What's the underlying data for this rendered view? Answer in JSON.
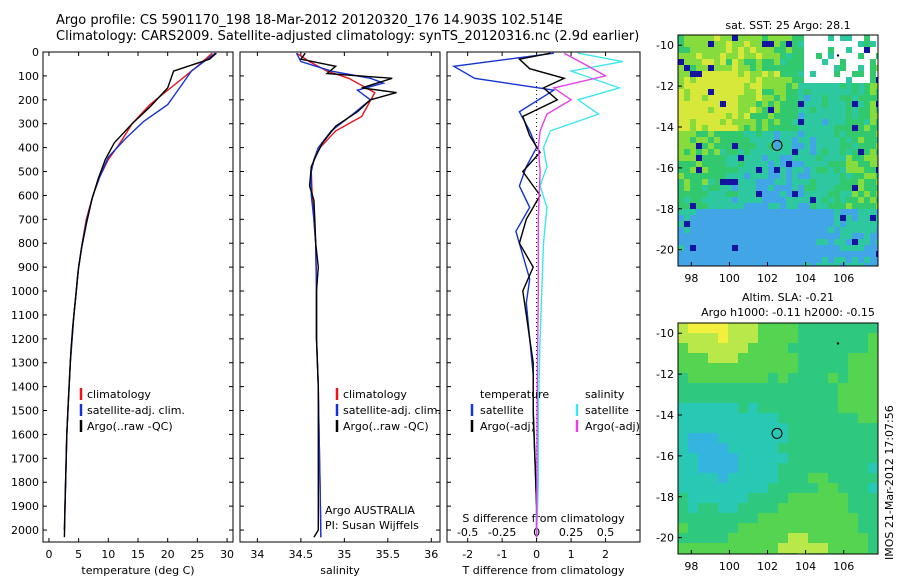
{
  "header": {
    "line1": "Argo profile: CS 5901170_198 18-Mar-2012 20120320_176 14.903S 102.514E",
    "line2": "Climatology: CARS2009. Satellite-adjusted climatology: synTS_20120316.nc (2.9d earlier)"
  },
  "credit": "IMOS 21-Mar-2012 17:07:56",
  "colors": {
    "climatology": "#e8141e",
    "satellite": "#1434d0",
    "argo": "#000000",
    "sat_salinity": "#3ee6ee",
    "argo_salinity": "#e640e6"
  },
  "chart_data": [
    {
      "type": "line",
      "id": "temperature",
      "xlabel": "temperature (deg C)",
      "ylim": [
        2050,
        0
      ],
      "xlim": [
        -1,
        31
      ],
      "xticks": [
        0,
        5,
        10,
        15,
        20,
        25,
        30
      ],
      "yticks": [
        0,
        100,
        200,
        300,
        400,
        500,
        600,
        700,
        800,
        900,
        1000,
        1100,
        1200,
        1300,
        1400,
        1500,
        1600,
        1700,
        1800,
        1900,
        2000
      ],
      "legend": [
        "climatology",
        "satellite-adj. clim.",
        "Argo(..raw -QC)"
      ],
      "series": [
        {
          "name": "climatology",
          "color": "#e8141e",
          "points": [
            [
              27.5,
              5
            ],
            [
              25,
              60
            ],
            [
              21,
              140
            ],
            [
              17,
              220
            ],
            [
              14,
              300
            ],
            [
              12,
              380
            ],
            [
              10,
              450
            ],
            [
              8.6,
              520
            ],
            [
              7.4,
              600
            ],
            [
              6.3,
              700
            ],
            [
              5.6,
              800
            ],
            [
              5.0,
              900
            ],
            [
              4.6,
              1000
            ],
            [
              4.2,
              1100
            ],
            [
              3.9,
              1200
            ],
            [
              3.6,
              1300
            ],
            [
              3.4,
              1400
            ],
            [
              3.2,
              1500
            ],
            [
              3.0,
              1600
            ],
            [
              2.9,
              1700
            ],
            [
              2.8,
              1800
            ],
            [
              2.7,
              1900
            ],
            [
              2.6,
              2000
            ]
          ]
        },
        {
          "name": "satellite-adj. clim.",
          "color": "#1434d0",
          "points": [
            [
              28,
              5
            ],
            [
              24,
              80
            ],
            [
              22,
              150
            ],
            [
              20,
              220
            ],
            [
              16,
              290
            ],
            [
              13,
              360
            ],
            [
              10,
              440
            ],
            [
              8.6,
              520
            ],
            [
              7.4,
              600
            ],
            [
              6.4,
              700
            ],
            [
              5.6,
              800
            ],
            [
              5.0,
              900
            ],
            [
              4.6,
              1000
            ],
            [
              4.2,
              1100
            ],
            [
              3.9,
              1200
            ],
            [
              3.6,
              1300
            ],
            [
              3.4,
              1400
            ],
            [
              3.2,
              1500
            ],
            [
              3.0,
              1600
            ],
            [
              2.9,
              1700
            ],
            [
              2.8,
              1800
            ],
            [
              2.7,
              1900
            ],
            [
              2.6,
              2000
            ]
          ]
        },
        {
          "name": "Argo(..raw -QC)",
          "color": "#000000",
          "points": [
            [
              28.2,
              5
            ],
            [
              27,
              30
            ],
            [
              21,
              80
            ],
            [
              20,
              150
            ],
            [
              17,
              230
            ],
            [
              14,
              300
            ],
            [
              11,
              380
            ],
            [
              9.5,
              450
            ],
            [
              8.3,
              530
            ],
            [
              7.2,
              620
            ],
            [
              6.3,
              720
            ],
            [
              5.5,
              820
            ],
            [
              4.9,
              920
            ],
            [
              4.4,
              1050
            ],
            [
              4.0,
              1150
            ],
            [
              3.7,
              1250
            ],
            [
              3.4,
              1400
            ],
            [
              3.2,
              1500
            ],
            [
              3.0,
              1600
            ],
            [
              2.9,
              1700
            ],
            [
              2.8,
              1800
            ],
            [
              2.7,
              1900
            ],
            [
              2.6,
              2030
            ]
          ]
        }
      ]
    },
    {
      "type": "line",
      "id": "salinity",
      "xlabel": "salinity",
      "ylim": [
        2050,
        0
      ],
      "xlim": [
        33.8,
        36.1
      ],
      "xticks": [
        34,
        34.5,
        35,
        35.5,
        36
      ],
      "legend": [
        "climatology",
        "satellite-adj. clim.",
        "Argo(..raw -QC)"
      ],
      "annotation": [
        "Argo AUSTRALIA",
        "PI: Susan Wijffels"
      ],
      "series": [
        {
          "name": "climatology",
          "color": "#e8141e",
          "points": [
            [
              34.45,
              5
            ],
            [
              34.6,
              40
            ],
            [
              34.8,
              80
            ],
            [
              35.05,
              110
            ],
            [
              35.35,
              170
            ],
            [
              35.2,
              270
            ],
            [
              34.9,
              330
            ],
            [
              34.72,
              400
            ],
            [
              34.65,
              450
            ],
            [
              34.62,
              500
            ],
            [
              34.63,
              600
            ],
            [
              34.65,
              700
            ],
            [
              34.67,
              800
            ],
            [
              34.68,
              1000
            ],
            [
              34.68,
              1200
            ],
            [
              34.7,
              1400
            ],
            [
              34.71,
              1600
            ],
            [
              34.72,
              1800
            ],
            [
              34.73,
              2030
            ]
          ]
        },
        {
          "name": "satellite-adj. clim.",
          "color": "#1434d0",
          "points": [
            [
              34.45,
              5
            ],
            [
              34.5,
              40
            ],
            [
              34.85,
              80
            ],
            [
              35.3,
              110
            ],
            [
              35.45,
              130
            ],
            [
              35.15,
              160
            ],
            [
              35.3,
              200
            ],
            [
              35.1,
              260
            ],
            [
              34.85,
              330
            ],
            [
              34.7,
              400
            ],
            [
              34.65,
              450
            ],
            [
              34.62,
              500
            ],
            [
              34.62,
              600
            ],
            [
              34.65,
              700
            ],
            [
              34.67,
              800
            ],
            [
              34.68,
              1000
            ],
            [
              34.68,
              1200
            ],
            [
              34.7,
              1400
            ],
            [
              34.71,
              1600
            ],
            [
              34.72,
              1800
            ],
            [
              34.73,
              2030
            ]
          ]
        },
        {
          "name": "Argo(..raw -QC)",
          "color": "#000000",
          "points": [
            [
              34.55,
              5
            ],
            [
              34.5,
              30
            ],
            [
              34.9,
              60
            ],
            [
              34.8,
              90
            ],
            [
              35.55,
              110
            ],
            [
              35.2,
              150
            ],
            [
              35.6,
              170
            ],
            [
              35.3,
              200
            ],
            [
              35.15,
              250
            ],
            [
              34.9,
              310
            ],
            [
              34.75,
              380
            ],
            [
              34.68,
              430
            ],
            [
              34.62,
              480
            ],
            [
              34.6,
              560
            ],
            [
              34.65,
              620
            ],
            [
              34.66,
              700
            ],
            [
              34.67,
              800
            ],
            [
              34.7,
              900
            ],
            [
              34.68,
              1000
            ],
            [
              34.68,
              1200
            ],
            [
              34.7,
              1400
            ],
            [
              34.7,
              1600
            ],
            [
              34.7,
              1800
            ],
            [
              34.7,
              2000
            ],
            [
              34.65,
              2030
            ]
          ]
        }
      ]
    },
    {
      "type": "line",
      "id": "difference",
      "xlabel": "T difference from climatology",
      "x2label": "S difference from climatology",
      "ylim": [
        2050,
        0
      ],
      "xlim": [
        -2.6,
        3.0
      ],
      "xticks": [
        -2,
        -1,
        0,
        1,
        2
      ],
      "x2ticks": [
        "-0.5",
        "-0.25",
        "0",
        "0.25",
        "0.5"
      ],
      "x2tick_pos": [
        -2,
        -1,
        0,
        1,
        2
      ],
      "legend_temperature": "temperature",
      "legend_salinity": "salinity",
      "legend_items": [
        "satellite",
        "Argo(-adj)"
      ],
      "series": [
        {
          "name": "satellite",
          "color": "#1434d0",
          "points": [
            [
              0.5,
              5
            ],
            [
              -2.4,
              60
            ],
            [
              -1.8,
              110
            ],
            [
              0.5,
              160
            ],
            [
              -0.5,
              250
            ],
            [
              -0.2,
              330
            ],
            [
              0.0,
              400
            ],
            [
              -0.3,
              480
            ],
            [
              -0.5,
              560
            ],
            [
              -0.2,
              650
            ],
            [
              -0.6,
              750
            ],
            [
              -0.4,
              850
            ],
            [
              -0.2,
              950
            ],
            [
              -0.3,
              1050
            ],
            [
              -0.2,
              1200
            ],
            [
              -0.1,
              1350
            ],
            [
              -0.1,
              1500
            ],
            [
              -0.05,
              1700
            ],
            [
              0,
              1900
            ],
            [
              0,
              2030
            ]
          ]
        },
        {
          "name": "Argo(-adj)",
          "color": "#000000",
          "points": [
            [
              0.4,
              5
            ],
            [
              -0.5,
              30
            ],
            [
              -0.2,
              70
            ],
            [
              0.8,
              110
            ],
            [
              0.2,
              150
            ],
            [
              0.6,
              200
            ],
            [
              -0.4,
              270
            ],
            [
              -0.2,
              350
            ],
            [
              0.1,
              420
            ],
            [
              -0.4,
              500
            ],
            [
              0.1,
              600
            ],
            [
              -0.3,
              700
            ],
            [
              -0.5,
              800
            ],
            [
              -0.1,
              900
            ],
            [
              -0.4,
              1000
            ],
            [
              -0.3,
              1100
            ],
            [
              -0.2,
              1200
            ],
            [
              -0.1,
              1300
            ],
            [
              -0.1,
              1500
            ],
            [
              -0.05,
              1700
            ],
            [
              0,
              1900
            ],
            [
              0,
              2030
            ]
          ]
        },
        {
          "name": "satellite",
          "color": "#3ee6ee",
          "points": [
            [
              1.2,
              5
            ],
            [
              2.5,
              40
            ],
            [
              1.0,
              80
            ],
            [
              2.4,
              150
            ],
            [
              1.2,
              200
            ],
            [
              1.8,
              260
            ],
            [
              0.4,
              330
            ],
            [
              0.2,
              400
            ],
            [
              0.3,
              480
            ],
            [
              0.1,
              560
            ],
            [
              0.3,
              650
            ],
            [
              0.2,
              800
            ],
            [
              0.15,
              1000
            ],
            [
              0.1,
              1200
            ],
            [
              0.05,
              1500
            ],
            [
              0.05,
              1800
            ],
            [
              0,
              2030
            ]
          ]
        },
        {
          "name": "Argo(-adj)",
          "color": "#e640e6",
          "points": [
            [
              0.8,
              5
            ],
            [
              1.5,
              60
            ],
            [
              2.0,
              100
            ],
            [
              0.5,
              150
            ],
            [
              1.0,
              200
            ],
            [
              0.3,
              260
            ],
            [
              0.1,
              330
            ],
            [
              0.05,
              400
            ],
            [
              0.1,
              500
            ],
            [
              0.05,
              700
            ],
            [
              0.05,
              1000
            ],
            [
              0.02,
              1400
            ],
            [
              0,
              2030
            ]
          ]
        }
      ]
    },
    {
      "type": "heatmap",
      "id": "sst-map",
      "title": "sat. SST: 25 Argo: 28.1",
      "xticks": [
        98,
        100,
        102,
        104,
        106
      ],
      "yticks": [
        -10,
        -12,
        -14,
        -16,
        -18,
        -20
      ],
      "xlim": [
        97.3,
        107.8
      ],
      "ylim": [
        -20.8,
        -9.5
      ],
      "marker": [
        102.5,
        -14.9
      ]
    },
    {
      "type": "heatmap",
      "id": "sla-map",
      "title": "Altim. SLA: -0.21",
      "subtitle": "Argo h1000: -0.11 h2000: -0.15",
      "xticks": [
        98,
        100,
        102,
        104,
        106
      ],
      "yticks": [
        -10,
        -12,
        -14,
        -16,
        -18,
        -20
      ],
      "xlim": [
        97.3,
        107.8
      ],
      "ylim": [
        -20.8,
        -9.5
      ],
      "marker": [
        102.5,
        -14.9
      ]
    }
  ]
}
